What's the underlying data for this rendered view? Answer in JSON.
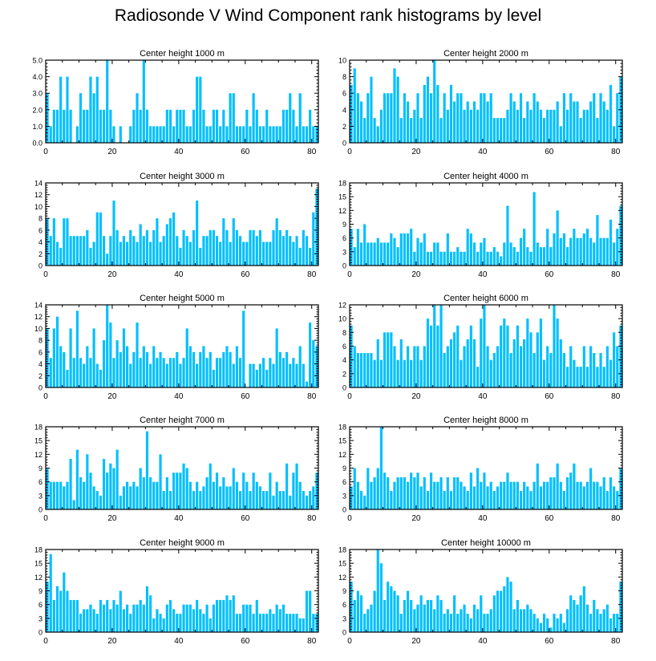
{
  "title": "Radiosonde V Wind Component rank histograms by level",
  "colors": {
    "bar": "#00bfff",
    "axis": "#000000"
  },
  "chart_data": [
    {
      "type": "bar",
      "title": "Center height 1000 m",
      "xlim": [
        0,
        82
      ],
      "ylim": [
        0,
        5
      ],
      "xticks": [
        0,
        20,
        40,
        60,
        80
      ],
      "yticks": [
        0,
        1,
        2,
        3,
        4,
        5
      ],
      "yticklabels": [
        "0.0",
        "1.0",
        "2.0",
        "3.0",
        "4.0",
        "5.0"
      ],
      "values": [
        3,
        1,
        2,
        2,
        4,
        2,
        4,
        2,
        0,
        1,
        3,
        2,
        2,
        4,
        3,
        4,
        2,
        2,
        5,
        2,
        1,
        0,
        1,
        0,
        0,
        1,
        2,
        3,
        2,
        5,
        2,
        1,
        1,
        1,
        1,
        1,
        2,
        2,
        1,
        2,
        2,
        2,
        1,
        1,
        2,
        4,
        4,
        2,
        1,
        1,
        2,
        2,
        1,
        2,
        1,
        3,
        3,
        1,
        1,
        1,
        2,
        1,
        3,
        2,
        1,
        1,
        2,
        1,
        1,
        1,
        1,
        2,
        2,
        3,
        2,
        1,
        3,
        1,
        1,
        2,
        1,
        1
      ]
    },
    {
      "type": "bar",
      "title": "Center height 2000 m",
      "xlim": [
        0,
        82
      ],
      "ylim": [
        0,
        10
      ],
      "xticks": [
        0,
        20,
        40,
        60,
        80
      ],
      "yticks": [
        0,
        2,
        4,
        6,
        8,
        10
      ],
      "values": [
        7,
        9,
        6,
        5,
        3,
        6,
        8,
        3,
        2,
        4,
        6,
        6,
        6,
        9,
        8,
        3,
        6,
        5,
        3,
        4,
        6,
        3,
        7,
        8,
        6,
        10,
        7,
        3,
        6,
        4,
        7,
        5,
        6,
        6,
        4,
        5,
        4,
        5,
        4,
        6,
        6,
        5,
        6,
        3,
        3,
        3,
        3,
        4,
        6,
        5,
        4,
        6,
        3,
        5,
        4,
        6,
        5,
        4,
        3,
        4,
        4,
        4,
        5,
        2,
        6,
        4,
        6,
        5,
        5,
        3,
        4,
        4,
        5,
        6,
        3,
        6,
        5,
        4,
        7,
        2,
        6,
        8
      ]
    },
    {
      "type": "bar",
      "title": "Center height 3000 m",
      "xlim": [
        0,
        82
      ],
      "ylim": [
        0,
        14
      ],
      "xticks": [
        0,
        20,
        40,
        60,
        80
      ],
      "yticks": [
        0,
        2,
        4,
        6,
        8,
        10,
        12,
        14
      ],
      "values": [
        8,
        5,
        8,
        4,
        3,
        8,
        8,
        5,
        5,
        5,
        5,
        5,
        6,
        3,
        4,
        9,
        9,
        5,
        2,
        5,
        11,
        6,
        4,
        5,
        4,
        6,
        5,
        4,
        7,
        5,
        6,
        4,
        6,
        8,
        4,
        5,
        7,
        8,
        9,
        5,
        3,
        6,
        5,
        4,
        6,
        11,
        3,
        5,
        5,
        6,
        6,
        5,
        4,
        8,
        6,
        4,
        8,
        6,
        5,
        4,
        4,
        6,
        6,
        5,
        6,
        4,
        4,
        4,
        6,
        8,
        6,
        5,
        6,
        5,
        4,
        5,
        3,
        6,
        5,
        3,
        9,
        13
      ]
    },
    {
      "type": "bar",
      "title": "Center height 4000 m",
      "xlim": [
        0,
        82
      ],
      "ylim": [
        0,
        18
      ],
      "xticks": [
        0,
        20,
        40,
        60,
        80
      ],
      "yticks": [
        0,
        3,
        6,
        9,
        12,
        15,
        18
      ],
      "values": [
        8,
        4,
        8,
        5,
        9,
        5,
        5,
        5,
        6,
        5,
        5,
        5,
        7,
        6,
        4,
        7,
        7,
        7,
        8,
        3,
        6,
        5,
        7,
        3,
        3,
        5,
        5,
        3,
        3,
        7,
        3,
        3,
        4,
        3,
        3,
        8,
        7,
        5,
        3,
        5,
        6,
        3,
        3,
        4,
        3,
        2,
        5,
        13,
        5,
        4,
        3,
        6,
        8,
        4,
        3,
        16,
        5,
        4,
        4,
        8,
        4,
        7,
        12,
        6,
        7,
        4,
        6,
        8,
        6,
        6,
        7,
        8,
        6,
        5,
        11,
        6,
        6,
        6,
        10,
        5,
        8,
        13
      ]
    },
    {
      "type": "bar",
      "title": "Center height 5000 m",
      "xlim": [
        0,
        82
      ],
      "ylim": [
        0,
        14
      ],
      "xticks": [
        0,
        20,
        40,
        60,
        80
      ],
      "yticks": [
        0,
        2,
        4,
        6,
        8,
        10,
        12,
        14
      ],
      "values": [
        10,
        5,
        10,
        12,
        7,
        6,
        3,
        10,
        5,
        13,
        5,
        4,
        7,
        5,
        10,
        4,
        3,
        8,
        14,
        11,
        5,
        8,
        6,
        10,
        7,
        4,
        6,
        11,
        5,
        7,
        6,
        4,
        7,
        5,
        6,
        5,
        4,
        5,
        5,
        6,
        4,
        5,
        10,
        7,
        6,
        4,
        6,
        7,
        5,
        6,
        3,
        5,
        5,
        6,
        7,
        6,
        4,
        7,
        5,
        13,
        0,
        4,
        4,
        3,
        4,
        5,
        3,
        5,
        4,
        10,
        6,
        5,
        6,
        4,
        5,
        4,
        7,
        4,
        1,
        11,
        8,
        7
      ]
    },
    {
      "type": "bar",
      "title": "Center height 6000 m",
      "xlim": [
        0,
        82
      ],
      "ylim": [
        0,
        12
      ],
      "xticks": [
        0,
        20,
        40,
        60,
        80
      ],
      "yticks": [
        0,
        2,
        4,
        6,
        8,
        10,
        12
      ],
      "values": [
        9,
        6,
        5,
        5,
        5,
        5,
        5,
        4,
        7,
        4,
        8,
        8,
        8,
        6,
        4,
        7,
        4,
        6,
        4,
        6,
        6,
        4,
        6,
        10,
        9,
        12,
        9,
        12,
        5,
        6,
        7,
        8,
        9,
        4,
        6,
        7,
        9,
        7,
        3,
        10,
        12,
        6,
        4,
        5,
        6,
        9,
        10,
        9,
        5,
        7,
        9,
        6,
        7,
        10,
        8,
        5,
        8,
        10,
        4,
        6,
        5,
        12,
        10,
        7,
        5,
        3,
        6,
        4,
        3,
        3,
        6,
        3,
        6,
        5,
        3,
        5,
        3,
        6,
        4,
        8,
        6,
        9
      ]
    },
    {
      "type": "bar",
      "title": "Center height 7000 m",
      "xlim": [
        0,
        82
      ],
      "ylim": [
        0,
        18
      ],
      "xticks": [
        0,
        20,
        40,
        60,
        80
      ],
      "yticks": [
        0,
        3,
        6,
        9,
        12,
        15,
        18
      ],
      "values": [
        9,
        6,
        6,
        6,
        6,
        5,
        6,
        11,
        2,
        13,
        7,
        6,
        12,
        8,
        5,
        4,
        3,
        11,
        8,
        10,
        9,
        13,
        3,
        5,
        6,
        5,
        6,
        5,
        9,
        7,
        17,
        7,
        6,
        6,
        12,
        4,
        7,
        4,
        8,
        8,
        8,
        10,
        9,
        6,
        4,
        6,
        4,
        5,
        7,
        10,
        6,
        8,
        5,
        7,
        5,
        5,
        9,
        6,
        4,
        8,
        6,
        4,
        8,
        6,
        5,
        4,
        4,
        8,
        3,
        6,
        4,
        4,
        10,
        3,
        8,
        10,
        6,
        4,
        3,
        4,
        5,
        8
      ]
    },
    {
      "type": "bar",
      "title": "Center height 8000 m",
      "xlim": [
        0,
        82
      ],
      "ylim": [
        0,
        18
      ],
      "xticks": [
        0,
        20,
        40,
        60,
        80
      ],
      "yticks": [
        0,
        3,
        6,
        9,
        12,
        15,
        18
      ],
      "values": [
        5,
        9,
        6,
        4,
        3,
        9,
        6,
        7,
        9,
        18,
        8,
        7,
        4,
        6,
        7,
        7,
        7,
        6,
        8,
        7,
        8,
        5,
        7,
        4,
        8,
        6,
        6,
        7,
        4,
        7,
        4,
        7,
        7,
        6,
        5,
        4,
        8,
        5,
        9,
        6,
        8,
        5,
        6,
        4,
        5,
        6,
        6,
        8,
        6,
        6,
        6,
        4,
        6,
        5,
        4,
        6,
        10,
        5,
        6,
        6,
        7,
        7,
        10,
        6,
        4,
        7,
        8,
        10,
        6,
        6,
        5,
        6,
        9,
        6,
        6,
        5,
        7,
        4,
        7,
        5,
        4,
        9
      ]
    },
    {
      "type": "bar",
      "title": "Center height 9000 m",
      "xlim": [
        0,
        82
      ],
      "ylim": [
        0,
        18
      ],
      "xticks": [
        0,
        20,
        40,
        60,
        80
      ],
      "yticks": [
        0,
        3,
        6,
        9,
        12,
        15,
        18
      ],
      "values": [
        11,
        17,
        7,
        10,
        9,
        13,
        9,
        7,
        7,
        7,
        4,
        5,
        5,
        6,
        5,
        4,
        7,
        6,
        7,
        5,
        7,
        6,
        9,
        5,
        6,
        4,
        6,
        6,
        7,
        6,
        10,
        8,
        3,
        5,
        4,
        3,
        6,
        7,
        5,
        4,
        4,
        6,
        6,
        6,
        5,
        7,
        5,
        4,
        6,
        3,
        6,
        7,
        7,
        7,
        8,
        7,
        8,
        4,
        4,
        6,
        6,
        6,
        4,
        7,
        4,
        4,
        4,
        5,
        4,
        6,
        5,
        6,
        4,
        4,
        4,
        4,
        3,
        3,
        9,
        9,
        4,
        4
      ]
    },
    {
      "type": "bar",
      "title": "Center height 10000 m",
      "xlim": [
        0,
        82
      ],
      "ylim": [
        0,
        18
      ],
      "xticks": [
        0,
        20,
        40,
        60,
        80
      ],
      "yticks": [
        0,
        3,
        6,
        9,
        12,
        15,
        18
      ],
      "values": [
        11,
        7,
        9,
        8,
        4,
        5,
        6,
        9,
        18,
        15,
        7,
        11,
        10,
        9,
        8,
        4,
        7,
        9,
        7,
        5,
        6,
        8,
        6,
        7,
        7,
        5,
        8,
        7,
        4,
        5,
        4,
        8,
        4,
        5,
        6,
        4,
        3,
        6,
        5,
        8,
        4,
        4,
        5,
        8,
        9,
        9,
        10,
        12,
        11,
        5,
        7,
        5,
        5,
        6,
        5,
        4,
        3,
        2,
        4,
        3,
        1,
        4,
        3,
        4,
        2,
        5,
        8,
        7,
        6,
        8,
        10,
        6,
        4,
        7,
        5,
        4,
        5,
        6,
        3,
        4,
        4,
        11
      ]
    }
  ]
}
